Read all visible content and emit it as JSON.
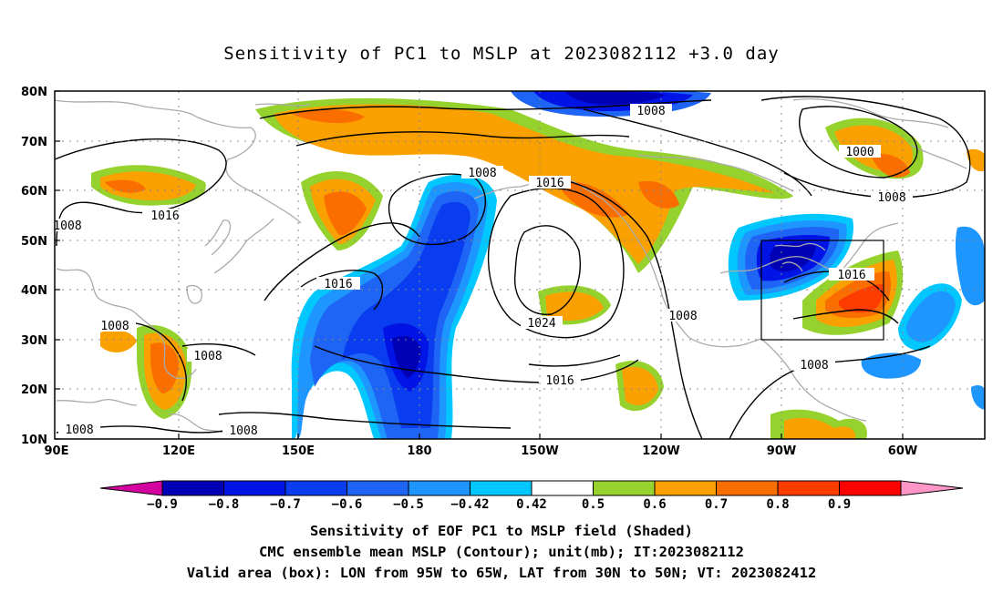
{
  "title": "Sensitivity of PC1 to MSLP at 2023082112 +3.0 day",
  "lat_labels": [
    "80N",
    "70N",
    "60N",
    "50N",
    "40N",
    "30N",
    "20N",
    "10N"
  ],
  "lon_labels": [
    "90E",
    "120E",
    "150E",
    "180",
    "150W",
    "120W",
    "90W",
    "60W"
  ],
  "contour_labels": [
    "1008",
    "1008",
    "1016",
    "1016",
    "1008",
    "1000",
    "1008",
    "1016",
    "1024",
    "1008",
    "1008",
    "1008",
    "1008",
    "1016",
    "1016",
    "1008",
    "1008"
  ],
  "colorbar": {
    "ticks": [
      "−0.9",
      "−0.8",
      "−0.7",
      "−0.6",
      "−0.5",
      "−0.42",
      "0.42",
      "0.5",
      "0.6",
      "0.7",
      "0.8",
      "0.9"
    ],
    "colors": [
      "#d400a0",
      "#0000b4",
      "#0014e6",
      "#0a3cf0",
      "#1e64f5",
      "#1e96ff",
      "#00c8ff",
      "#ffffff",
      "#96d22d",
      "#faa000",
      "#fa6e00",
      "#ff3c00",
      "#ff0000",
      "#ff96c8"
    ]
  },
  "captions": {
    "line1": "Sensitivity of EOF PC1 to MSLP field (Shaded)",
    "line2": "CMC ensemble mean MSLP (Contour); unit(mb); IT:2023082112",
    "line3": "Valid area (box): LON from 95W to 65W, LAT from 30N to 50N; VT: 2023082412"
  },
  "valid_box": {
    "lon": [
      "95W",
      "65W"
    ],
    "lat": [
      "30N",
      "50N"
    ]
  }
}
